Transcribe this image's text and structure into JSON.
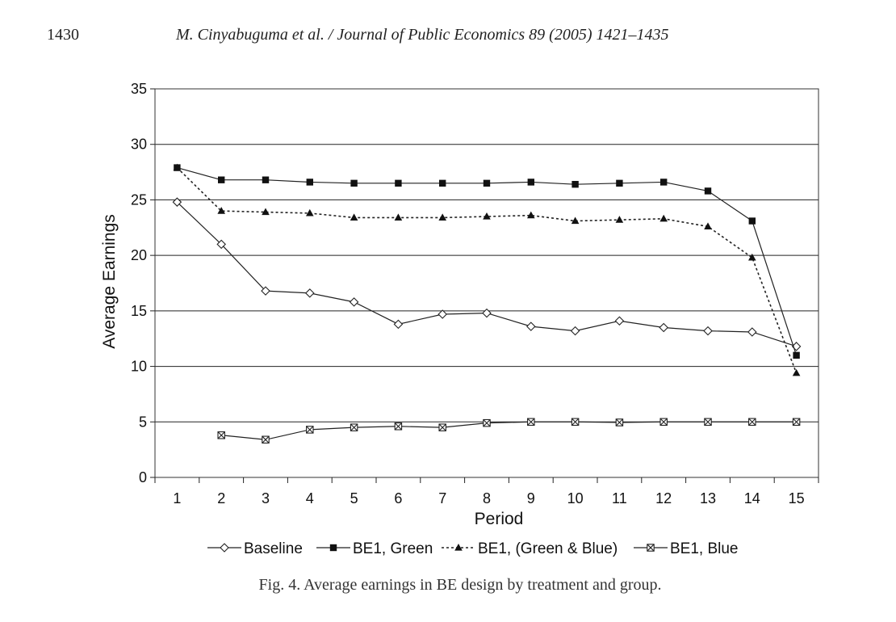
{
  "header": {
    "page_number": "1430",
    "running_title": "M. Cinyabuguma et al. / Journal of Public Economics 89 (2005) 1421–1435"
  },
  "caption": "Fig. 4. Average earnings in BE design by treatment and group.",
  "chart_data": {
    "type": "line",
    "title": "",
    "xlabel": "Period",
    "ylabel": "Average Earnings",
    "categories": [
      "1",
      "2",
      "3",
      "4",
      "5",
      "6",
      "7",
      "8",
      "9",
      "10",
      "11",
      "12",
      "13",
      "14",
      "15"
    ],
    "ylim": [
      0,
      35
    ],
    "yticks": [
      0,
      5,
      10,
      15,
      20,
      25,
      30,
      35
    ],
    "grid": "horizontal",
    "legend_position": "bottom",
    "series": [
      {
        "name": "Baseline",
        "marker": "diamond-open",
        "line": "solid",
        "values": [
          24.8,
          21.0,
          16.8,
          16.6,
          15.8,
          13.8,
          14.7,
          14.8,
          13.6,
          13.2,
          14.1,
          13.5,
          13.2,
          13.1,
          11.8
        ]
      },
      {
        "name": "BE1, Green",
        "marker": "square-filled",
        "line": "solid",
        "values": [
          27.9,
          26.8,
          26.8,
          26.6,
          26.5,
          26.5,
          26.5,
          26.5,
          26.6,
          26.4,
          26.5,
          26.6,
          25.8,
          23.1,
          11.0
        ]
      },
      {
        "name": "BE1, (Green & Blue)",
        "marker": "triangle-filled",
        "line": "dotted",
        "values": [
          27.9,
          24.0,
          23.9,
          23.8,
          23.4,
          23.4,
          23.4,
          23.5,
          23.6,
          23.1,
          23.2,
          23.3,
          22.6,
          19.8,
          9.4
        ]
      },
      {
        "name": "BE1, Blue",
        "marker": "square-x",
        "line": "solid",
        "values": [
          null,
          3.8,
          3.4,
          4.3,
          4.5,
          4.6,
          4.5,
          4.9,
          5.0,
          5.0,
          4.95,
          5.0,
          5.0,
          5.0,
          5.0
        ]
      }
    ]
  }
}
